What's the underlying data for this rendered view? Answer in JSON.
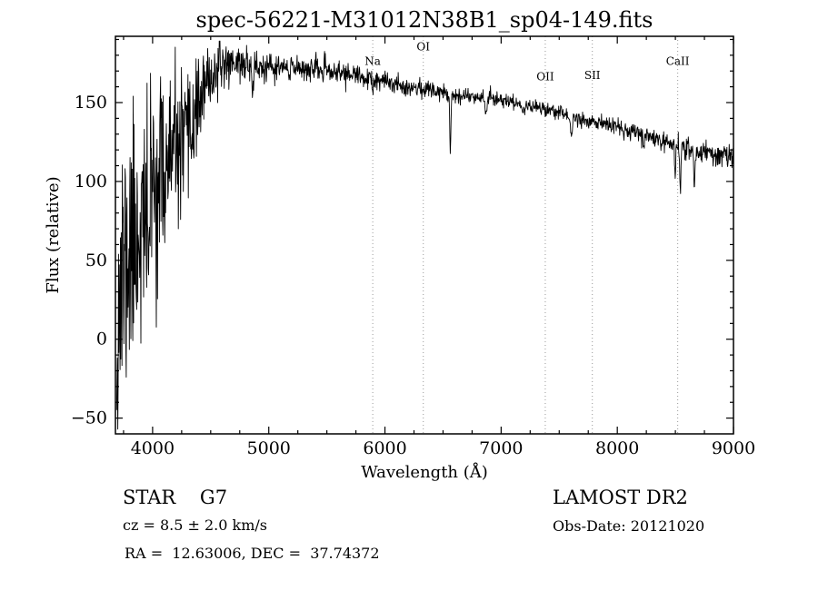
{
  "footer": {
    "star_class": "STAR    G7",
    "survey": "LAMOST DR2",
    "cz": "cz = 8.5 ± 2.0 km/s",
    "obs_date": "Obs-Date: 20121020",
    "radec": "RA =  12.63006, DEC =  37.74372"
  },
  "chart_data": {
    "type": "line",
    "title": "spec-56221-M31012N38B1_sp04-149.fits",
    "xlabel": "Wavelength (Å)",
    "ylabel": "Flux (relative)",
    "xlim": [
      3680,
      9000
    ],
    "ylim": [
      -60,
      192
    ],
    "xticks": [
      4000,
      5000,
      6000,
      7000,
      8000,
      9000
    ],
    "yticks": [
      -50,
      0,
      50,
      100,
      150
    ],
    "x_minor": 250,
    "y_minor": 10,
    "line_color": "#000000",
    "feature_line_color": "#999999",
    "feature_lines": [
      {
        "label": "Na",
        "wavelength": 5895,
        "label_flux": 174
      },
      {
        "label": "OI",
        "wavelength": 6330,
        "label_flux": 183
      },
      {
        "label": "OII",
        "wavelength": 7380,
        "label_flux": 164
      },
      {
        "label": "SII",
        "wavelength": 7785,
        "label_flux": 165
      },
      {
        "label": "CaII",
        "wavelength": 8520,
        "label_flux": 174
      }
    ],
    "data_range": [
      3690,
      9000
    ],
    "samples": 1600,
    "seed": 11,
    "continuum": [
      [
        3690,
        12
      ],
      [
        3720,
        28
      ],
      [
        3760,
        45
      ],
      [
        3800,
        55
      ],
      [
        3850,
        66
      ],
      [
        3900,
        76
      ],
      [
        3950,
        86
      ],
      [
        4000,
        96
      ],
      [
        4050,
        102
      ],
      [
        4100,
        108
      ],
      [
        4150,
        113
      ],
      [
        4200,
        118
      ],
      [
        4250,
        122
      ],
      [
        4300,
        128
      ],
      [
        4350,
        140
      ],
      [
        4400,
        150
      ],
      [
        4450,
        158
      ],
      [
        4500,
        165
      ],
      [
        4550,
        170
      ],
      [
        4600,
        174
      ],
      [
        4700,
        176
      ],
      [
        4800,
        174
      ],
      [
        4900,
        172
      ],
      [
        5000,
        171
      ],
      [
        5100,
        172
      ],
      [
        5200,
        173
      ],
      [
        5300,
        172
      ],
      [
        5400,
        171
      ],
      [
        5500,
        170
      ],
      [
        5600,
        169
      ],
      [
        5700,
        168
      ],
      [
        5800,
        166
      ],
      [
        5900,
        164
      ],
      [
        6000,
        163
      ],
      [
        6100,
        162
      ],
      [
        6200,
        160
      ],
      [
        6300,
        159
      ],
      [
        6400,
        158
      ],
      [
        6500,
        157
      ],
      [
        6600,
        155
      ],
      [
        6700,
        154
      ],
      [
        6800,
        154
      ],
      [
        6900,
        153
      ],
      [
        7000,
        152
      ],
      [
        7100,
        150
      ],
      [
        7200,
        149
      ],
      [
        7300,
        147
      ],
      [
        7400,
        146
      ],
      [
        7500,
        144
      ],
      [
        7600,
        141
      ],
      [
        7700,
        139
      ],
      [
        7800,
        138
      ],
      [
        7900,
        136
      ],
      [
        8000,
        134
      ],
      [
        8100,
        132
      ],
      [
        8200,
        130
      ],
      [
        8300,
        128
      ],
      [
        8400,
        126
      ],
      [
        8500,
        124
      ],
      [
        8600,
        121
      ],
      [
        8700,
        119
      ],
      [
        8800,
        118
      ],
      [
        8900,
        117
      ],
      [
        9000,
        115
      ]
    ],
    "noise_sigma": [
      [
        3690,
        50
      ],
      [
        3750,
        47
      ],
      [
        3800,
        42
      ],
      [
        3900,
        38
      ],
      [
        4000,
        34
      ],
      [
        4100,
        29
      ],
      [
        4200,
        25
      ],
      [
        4300,
        21
      ],
      [
        4400,
        13
      ],
      [
        4500,
        9
      ],
      [
        4600,
        7
      ],
      [
        4800,
        5.5
      ],
      [
        5000,
        4.5
      ],
      [
        5500,
        3.5
      ],
      [
        6000,
        3
      ],
      [
        6500,
        2.6
      ],
      [
        7000,
        2.4
      ],
      [
        7500,
        2.4
      ],
      [
        8000,
        2.6
      ],
      [
        8500,
        3
      ],
      [
        9000,
        4.5
      ]
    ],
    "absorption_features": [
      {
        "center": 3934,
        "depth": 28,
        "width": 8
      },
      {
        "center": 3968,
        "depth": 24,
        "width": 8
      },
      {
        "center": 4305,
        "depth": 12,
        "width": 14
      },
      {
        "center": 4861,
        "depth": 12,
        "width": 7
      },
      {
        "center": 5175,
        "depth": 7,
        "width": 10
      },
      {
        "center": 5893,
        "depth": 7,
        "width": 7
      },
      {
        "center": 6563,
        "depth": 36,
        "width": 5
      },
      {
        "center": 6870,
        "depth": 9,
        "width": 7
      },
      {
        "center": 7190,
        "depth": 5,
        "width": 12
      },
      {
        "center": 7605,
        "depth": 11,
        "width": 9
      },
      {
        "center": 8230,
        "depth": 8,
        "width": 5
      },
      {
        "center": 8498,
        "depth": 20,
        "width": 5
      },
      {
        "center": 8542,
        "depth": 27,
        "width": 5
      },
      {
        "center": 8662,
        "depth": 22,
        "width": 5
      }
    ]
  }
}
